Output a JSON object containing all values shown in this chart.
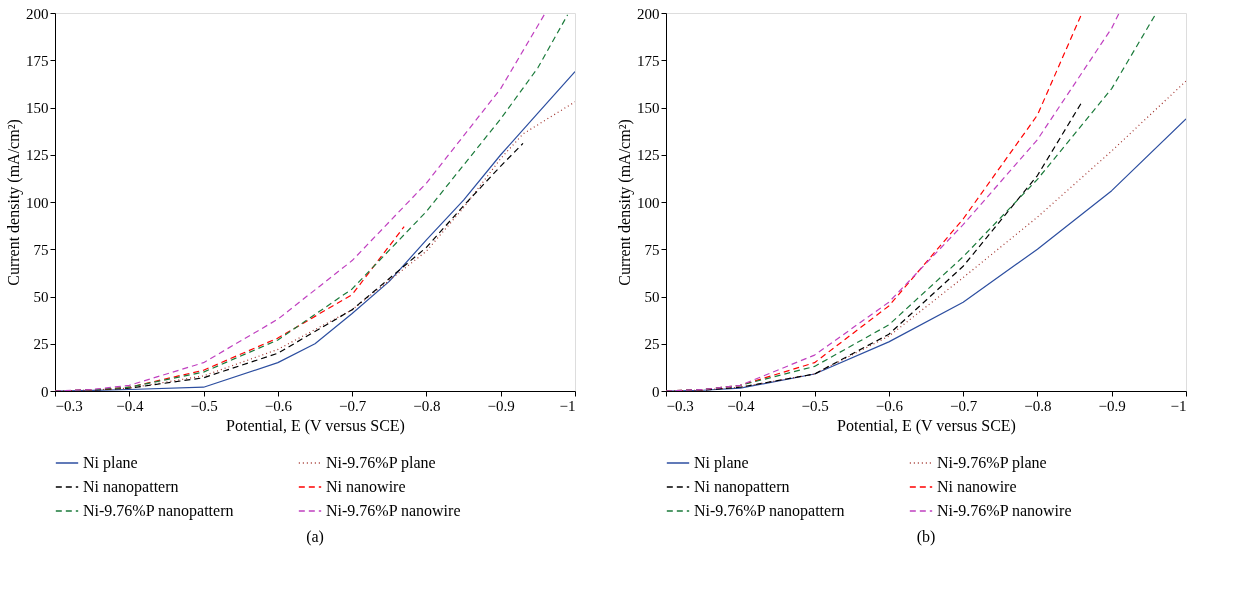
{
  "chart_data": [
    {
      "type": "line",
      "xlabel": "Potential, E (V versus SCE)",
      "ylabel": "Current density (mA/cm²)",
      "xlim": [
        -0.3,
        -1
      ],
      "xticks": [
        -0.3,
        -0.4,
        -0.5,
        -0.6,
        -0.7,
        -0.8,
        -0.9,
        -1
      ],
      "ylim": [
        0,
        200
      ],
      "yticks": [
        0,
        25,
        50,
        75,
        100,
        125,
        150,
        175,
        200
      ],
      "legend": "bottom",
      "grid": false,
      "annotations": [
        "(a)"
      ],
      "series": [
        {
          "name": "Ni plane",
          "color": "#2c4ea0",
          "line_style": "solid",
          "x": [
            -0.3,
            -0.35,
            -0.4,
            -0.5,
            -0.6,
            -0.65,
            -0.7,
            -0.75,
            -0.8,
            -0.85,
            -0.9,
            -0.95,
            -1
          ],
          "values": [
            0,
            0.3,
            0.8,
            2,
            15,
            25,
            41,
            58,
            80,
            101,
            125,
            147,
            169
          ]
        },
        {
          "name": "Ni-9.76%P plane",
          "color": "#a0302a",
          "line_style": "dotted",
          "x": [
            -0.3,
            -0.35,
            -0.4,
            -0.5,
            -0.6,
            -0.7,
            -0.8,
            -0.85,
            -0.9,
            -0.93,
            -1
          ],
          "values": [
            0,
            0.5,
            1.5,
            8,
            22,
            43,
            74,
            97,
            123,
            136,
            153
          ]
        },
        {
          "name": "Ni nanopattern",
          "color": "#000000",
          "line_style": "dashed",
          "x": [
            -0.3,
            -0.35,
            -0.4,
            -0.5,
            -0.6,
            -0.7,
            -0.8,
            -0.85,
            -0.9,
            -0.93
          ],
          "values": [
            0,
            0.5,
            1.5,
            7,
            20,
            43,
            76,
            98,
            119,
            131
          ]
        },
        {
          "name": "Ni nanowire",
          "color": "#ff0000",
          "line_style": "dashed",
          "x": [
            -0.3,
            -0.35,
            -0.4,
            -0.5,
            -0.6,
            -0.7,
            -0.77
          ],
          "values": [
            0,
            0.6,
            2,
            11,
            28,
            51,
            87
          ]
        },
        {
          "name": "Ni-9.76%P nanopattern",
          "color": "#1a7a3a",
          "line_style": "dashed",
          "x": [
            -0.3,
            -0.35,
            -0.4,
            -0.5,
            -0.6,
            -0.7,
            -0.8,
            -0.9,
            -0.95,
            -0.99
          ],
          "values": [
            0,
            0.6,
            2,
            10,
            27,
            54,
            95,
            144,
            171,
            199
          ]
        },
        {
          "name": "Ni-9.76%P nanowire",
          "color": "#c040c0",
          "line_style": "dashed",
          "x": [
            -0.3,
            -0.35,
            -0.4,
            -0.5,
            -0.6,
            -0.7,
            -0.8,
            -0.9,
            -0.96
          ],
          "values": [
            0,
            0.8,
            3,
            15,
            38,
            69,
            110,
            160,
            200
          ]
        }
      ]
    },
    {
      "type": "line",
      "xlabel": "Potential, E (V versus SCE)",
      "ylabel": "Current density (mA/cm²)",
      "xlim": [
        -0.3,
        -1
      ],
      "xticks": [
        -0.3,
        -0.4,
        -0.5,
        -0.6,
        -0.7,
        -0.8,
        -0.9,
        -1
      ],
      "ylim": [
        0,
        200
      ],
      "yticks": [
        0,
        25,
        50,
        75,
        100,
        125,
        150,
        175,
        200
      ],
      "legend": "bottom",
      "grid": false,
      "annotations": [
        "(b)"
      ],
      "series": [
        {
          "name": "Ni plane",
          "color": "#2c4ea0",
          "line_style": "solid",
          "x": [
            -0.3,
            -0.35,
            -0.4,
            -0.5,
            -0.6,
            -0.7,
            -0.8,
            -0.9,
            -1
          ],
          "values": [
            0,
            0.4,
            1.5,
            9,
            26,
            47,
            75,
            106,
            144
          ]
        },
        {
          "name": "Ni-9.76%P plane",
          "color": "#a0302a",
          "line_style": "dotted",
          "x": [
            -0.3,
            -0.35,
            -0.4,
            -0.5,
            -0.6,
            -0.7,
            -0.8,
            -0.9,
            -1
          ],
          "values": [
            0,
            0.5,
            2,
            9,
            29,
            60,
            92,
            127,
            164
          ]
        },
        {
          "name": "Ni nanopattern",
          "color": "#000000",
          "line_style": "dashed",
          "x": [
            -0.3,
            -0.35,
            -0.4,
            -0.5,
            -0.6,
            -0.7,
            -0.8,
            -0.86
          ],
          "values": [
            0,
            0.5,
            2,
            9,
            30,
            66,
            114,
            153
          ]
        },
        {
          "name": "Ni nanowire",
          "color": "#ff0000",
          "line_style": "dashed",
          "x": [
            -0.3,
            -0.35,
            -0.4,
            -0.5,
            -0.6,
            -0.7,
            -0.8,
            -0.86
          ],
          "values": [
            0,
            0.8,
            3,
            15,
            45,
            91,
            146,
            200
          ]
        },
        {
          "name": "Ni-9.76%P nanopattern",
          "color": "#1a7a3a",
          "line_style": "dashed",
          "x": [
            -0.3,
            -0.35,
            -0.4,
            -0.5,
            -0.6,
            -0.7,
            -0.8,
            -0.9,
            -0.96
          ],
          "values": [
            0,
            0.8,
            3,
            13,
            35,
            71,
            112,
            160,
            200
          ]
        },
        {
          "name": "Ni-9.76%P nanowire",
          "color": "#c040c0",
          "line_style": "dashed",
          "x": [
            -0.3,
            -0.35,
            -0.4,
            -0.5,
            -0.6,
            -0.7,
            -0.8,
            -0.9,
            -0.91
          ],
          "values": [
            0,
            0.8,
            3,
            19,
            47,
            88,
            133,
            192,
            200
          ]
        }
      ]
    }
  ]
}
